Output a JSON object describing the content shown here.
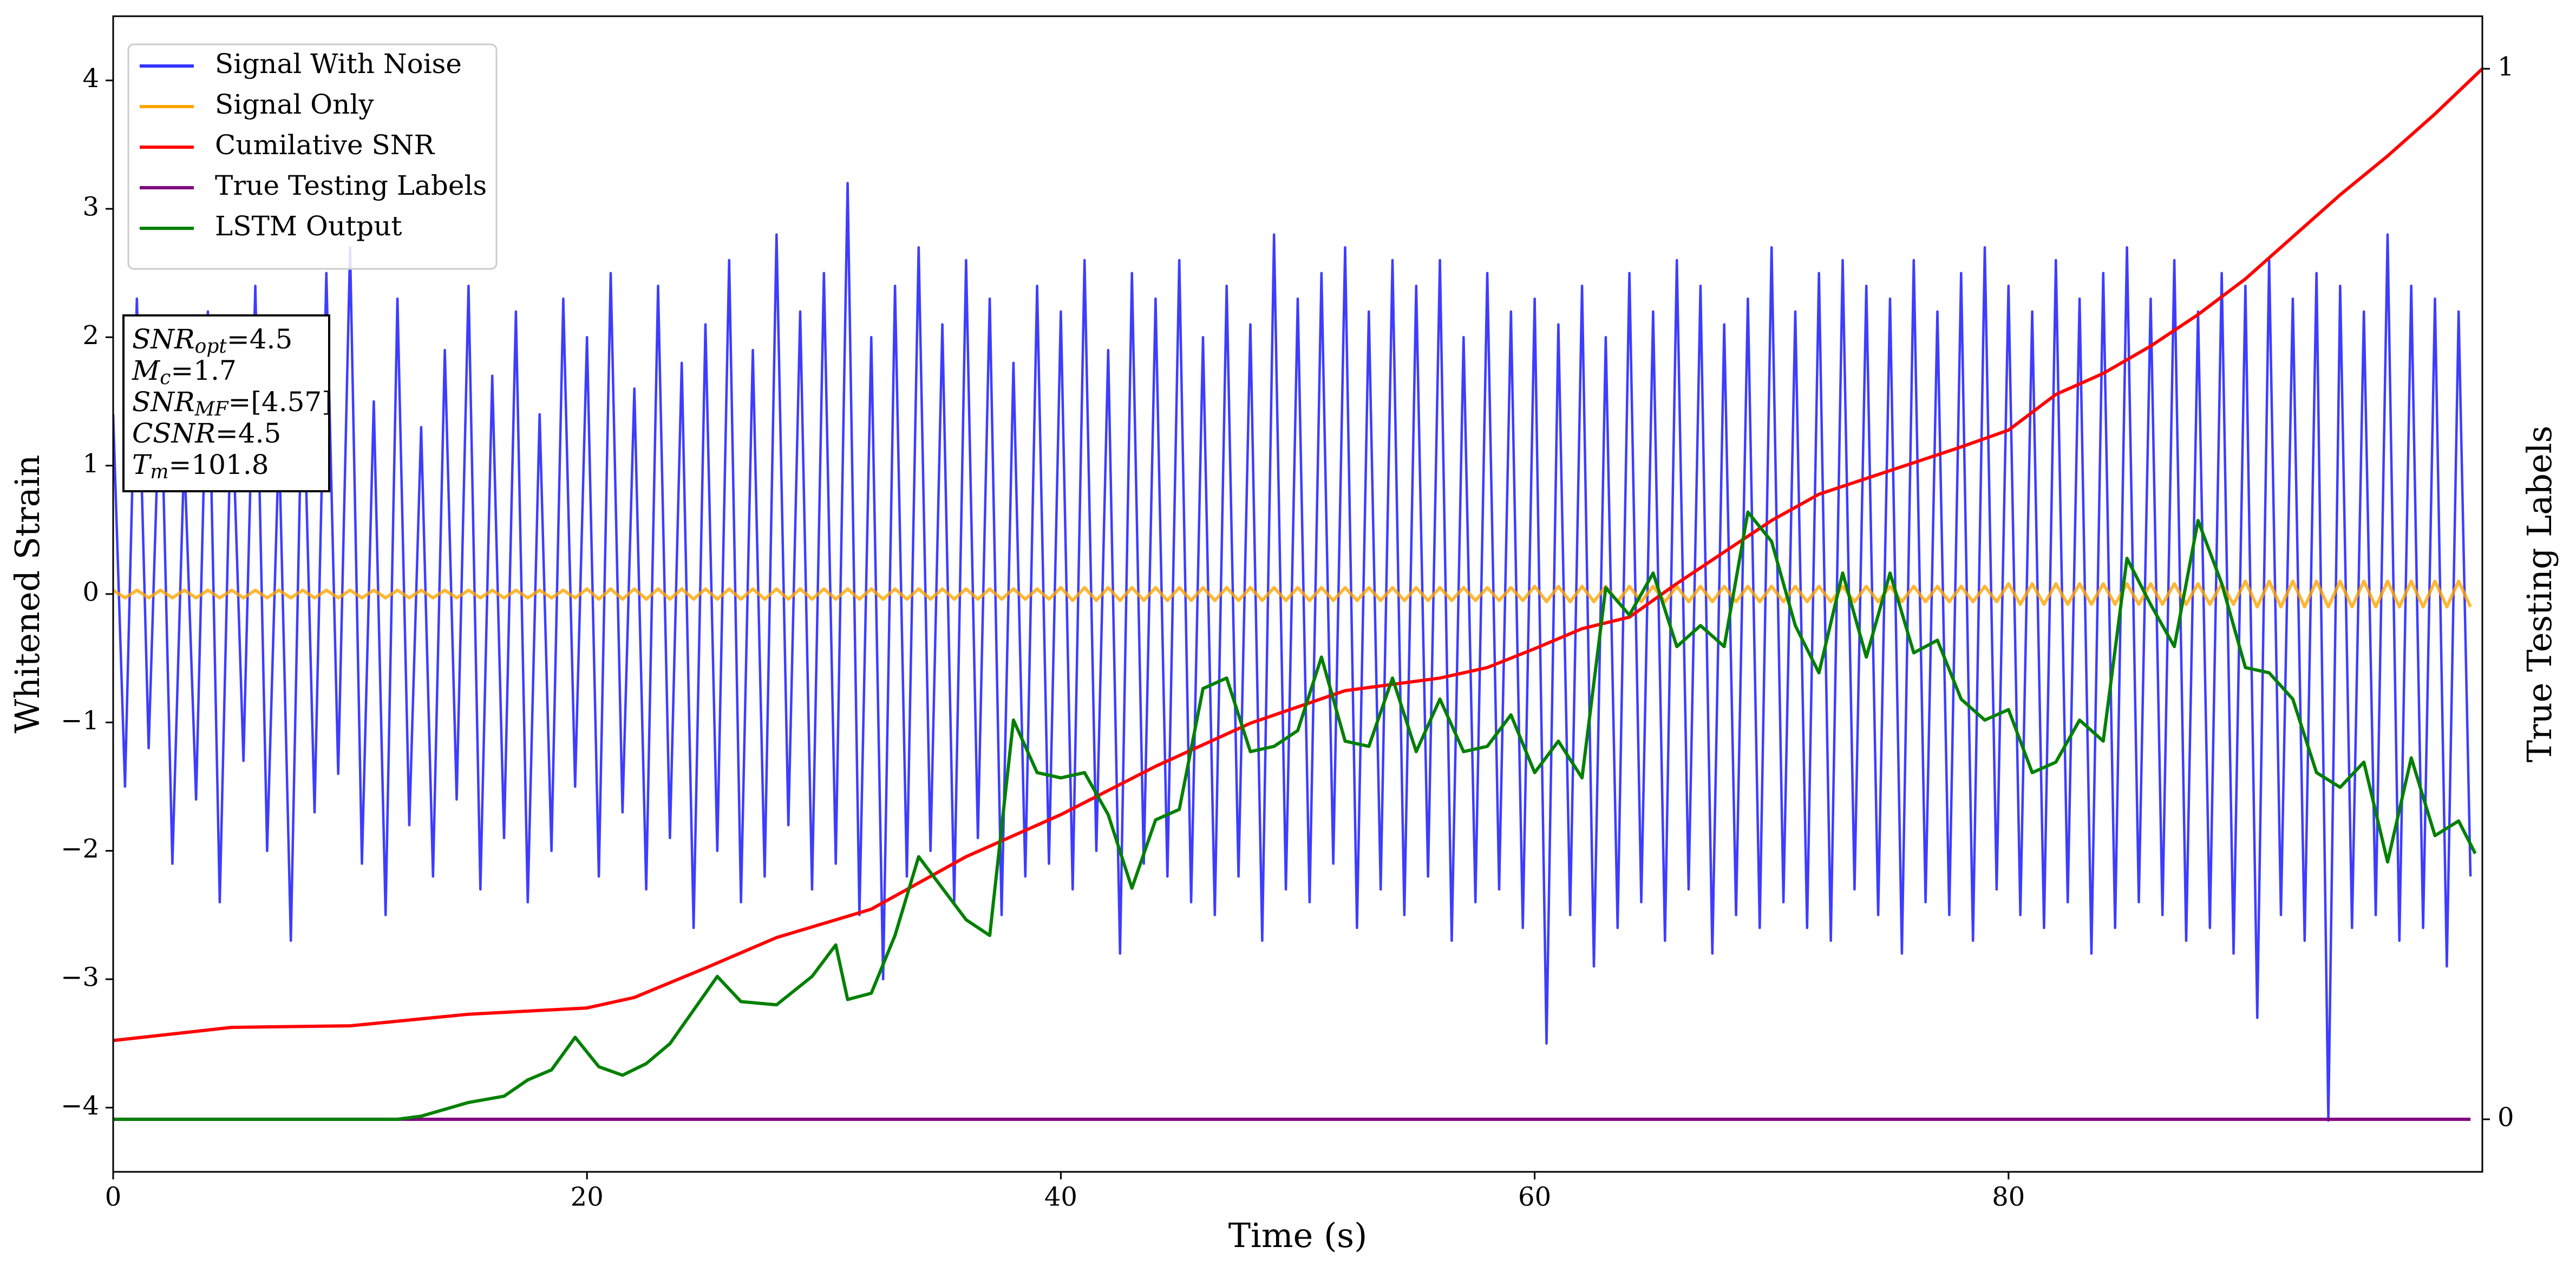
{
  "chart_data": {
    "type": "line",
    "xlabel": "Time (s)",
    "ylabel": "Whitened Strain",
    "y2label": "True Testing Labels",
    "xlim": [
      0,
      100
    ],
    "ylim": [
      -4.5,
      4.5
    ],
    "y2lim": [
      -0.05,
      1.05
    ],
    "xticks": [
      0,
      20,
      40,
      60,
      80
    ],
    "yticks": [
      {
        "value": -4,
        "label": "−4"
      },
      {
        "value": -3,
        "label": "−3"
      },
      {
        "value": -2,
        "label": "−2"
      },
      {
        "value": -1,
        "label": "−1"
      },
      0,
      1,
      2,
      3,
      4
    ],
    "y2ticks": [
      0,
      1
    ],
    "grid": false,
    "legend": "upper left",
    "annotations": [
      {
        "main": "SNR",
        "sub": "opt",
        "tail": "=4.5"
      },
      {
        "main": "M",
        "sub": "c",
        "tail": "=1.7"
      },
      {
        "main": "SNR",
        "sub": "MF",
        "tail": "=[4.57]"
      },
      {
        "main": "CSNR",
        "tail": "=4.5"
      },
      {
        "main": "T",
        "sub": "m",
        "tail": "=101.8"
      }
    ],
    "x": [
      0,
      0.5,
      1,
      1.5,
      2,
      2.5,
      3,
      3.5,
      4,
      4.5,
      5,
      5.5,
      6,
      6.5,
      7,
      7.5,
      8,
      8.5,
      9,
      9.5,
      10,
      10.5,
      11,
      11.5,
      12,
      12.5,
      13,
      13.5,
      14,
      14.5,
      15,
      15.5,
      16,
      16.5,
      17,
      17.5,
      18,
      18.5,
      19,
      19.5,
      20,
      20.5,
      21,
      21.5,
      22,
      22.5,
      23,
      23.5,
      24,
      24.5,
      25,
      25.5,
      26,
      26.5,
      27,
      27.5,
      28,
      28.5,
      29,
      29.5,
      30,
      30.5,
      31,
      31.5,
      32,
      32.5,
      33,
      33.5,
      34,
      34.5,
      35,
      35.5,
      36,
      36.5,
      37,
      37.5,
      38,
      38.5,
      39,
      39.5,
      40,
      40.5,
      41,
      41.5,
      42,
      42.5,
      43,
      43.5,
      44,
      44.5,
      45,
      45.5,
      46,
      46.5,
      47,
      47.5,
      48,
      48.5,
      49,
      49.5,
      50,
      50.5,
      51,
      51.5,
      52,
      52.5,
      53,
      53.5,
      54,
      54.5,
      55,
      55.5,
      56,
      56.5,
      57,
      57.5,
      58,
      58.5,
      59,
      59.5,
      60,
      60.5,
      61,
      61.5,
      62,
      62.5,
      63,
      63.5,
      64,
      64.5,
      65,
      65.5,
      66,
      66.5,
      67,
      67.5,
      68,
      68.5,
      69,
      69.5,
      70,
      70.5,
      71,
      71.5,
      72,
      72.5,
      73,
      73.5,
      74,
      74.5,
      75,
      75.5,
      76,
      76.5,
      77,
      77.5,
      78,
      78.5,
      79,
      79.5,
      80,
      80.5,
      81,
      81.5,
      82,
      82.5,
      83,
      83.5,
      84,
      84.5,
      85,
      85.5,
      86,
      86.5,
      87,
      87.5,
      88,
      88.5,
      89,
      89.5,
      90,
      90.5,
      91,
      91.5,
      92,
      92.5,
      93,
      93.5,
      94,
      94.5,
      95,
      95.5,
      96,
      96.5,
      97,
      97.5,
      98,
      98.5,
      99,
      99.5
    ],
    "series": [
      {
        "name": "Signal With Noise",
        "color": "#3333ff",
        "values": [
          1.4,
          -1.5,
          2.3,
          -1.2,
          1.8,
          -2.1,
          1.1,
          -1.6,
          2.2,
          -2.4,
          1.6,
          -1.3,
          2.4,
          -2.0,
          1.2,
          -2.7,
          1.9,
          -1.7,
          2.5,
          -1.4,
          2.7,
          -2.1,
          1.5,
          -2.5,
          2.3,
          -1.8,
          1.3,
          -2.2,
          1.9,
          -1.6,
          2.4,
          -2.3,
          1.7,
          -1.9,
          2.2,
          -2.4,
          1.4,
          -2.0,
          2.3,
          -1.5,
          2.0,
          -2.2,
          2.5,
          -1.7,
          1.6,
          -2.3,
          2.4,
          -1.9,
          1.8,
          -2.6,
          2.1,
          -2.0,
          2.6,
          -2.4,
          1.9,
          -2.2,
          2.8,
          -1.8,
          2.2,
          -2.3,
          2.5,
          -2.1,
          3.2,
          -2.5,
          2.0,
          -3.0,
          2.4,
          -2.2,
          2.7,
          -2.0,
          2.1,
          -2.4,
          2.6,
          -1.9,
          2.3,
          -2.5,
          1.8,
          -2.2,
          2.4,
          -2.1,
          2.2,
          -2.3,
          2.6,
          -2.0,
          1.9,
          -2.8,
          2.5,
          -2.1,
          2.3,
          -2.2,
          2.6,
          -2.4,
          2.0,
          -2.5,
          2.4,
          -2.2,
          2.1,
          -2.7,
          2.8,
          -2.3,
          2.3,
          -2.4,
          2.5,
          -2.1,
          2.7,
          -2.6,
          2.2,
          -2.3,
          2.6,
          -2.5,
          2.4,
          -2.2,
          2.6,
          -2.7,
          2.0,
          -2.4,
          2.5,
          -2.3,
          2.2,
          -2.6,
          2.3,
          -3.5,
          2.1,
          -2.5,
          2.4,
          -2.9,
          2.0,
          -2.6,
          2.5,
          -2.4,
          2.2,
          -2.7,
          2.6,
          -2.3,
          2.4,
          -2.8,
          2.1,
          -2.5,
          2.3,
          -2.6,
          2.7,
          -2.4,
          2.2,
          -2.6,
          2.5,
          -2.7,
          2.6,
          -2.3,
          2.4,
          -2.5,
          2.3,
          -2.8,
          2.6,
          -2.4,
          2.2,
          -2.5,
          2.5,
          -2.7,
          2.7,
          -2.3,
          2.4,
          -2.5,
          2.2,
          -2.6,
          2.6,
          -2.4,
          2.3,
          -2.8,
          2.5,
          -2.6,
          2.7,
          -2.4,
          2.3,
          -2.5,
          2.6,
          -2.7,
          2.2,
          -2.6,
          2.5,
          -2.8,
          2.4,
          -3.3,
          2.6,
          -2.5,
          2.3,
          -2.7,
          2.5,
          -4.1,
          2.4,
          -2.6,
          2.2,
          -2.5,
          2.8,
          -2.7,
          2.4,
          -2.6,
          2.3,
          -2.9,
          2.2,
          -2.2
        ]
      },
      {
        "name": "Signal Only",
        "color": "#ffa500",
        "values": [
          0.03,
          -0.03,
          0.03,
          -0.03,
          0.03,
          -0.03,
          0.03,
          -0.03,
          0.03,
          -0.03,
          0.03,
          -0.03,
          0.03,
          -0.03,
          0.03,
          -0.03,
          0.03,
          -0.03,
          0.03,
          -0.03,
          0.03,
          -0.03,
          0.03,
          -0.03,
          0.03,
          -0.03,
          0.03,
          -0.03,
          0.03,
          -0.03,
          0.03,
          -0.03,
          0.03,
          -0.03,
          0.03,
          -0.03,
          0.03,
          -0.03,
          0.03,
          -0.03,
          0.04,
          -0.04,
          0.04,
          -0.04,
          0.04,
          -0.04,
          0.04,
          -0.04,
          0.04,
          -0.04,
          0.04,
          -0.04,
          0.04,
          -0.04,
          0.04,
          -0.04,
          0.04,
          -0.04,
          0.04,
          -0.04,
          0.04,
          -0.04,
          0.04,
          -0.04,
          0.04,
          -0.04,
          0.04,
          -0.04,
          0.04,
          -0.04,
          0.04,
          -0.04,
          0.04,
          -0.04,
          0.04,
          -0.04,
          0.04,
          -0.04,
          0.04,
          -0.04,
          0.05,
          -0.05,
          0.05,
          -0.05,
          0.05,
          -0.05,
          0.05,
          -0.05,
          0.05,
          -0.05,
          0.05,
          -0.05,
          0.05,
          -0.05,
          0.05,
          -0.05,
          0.05,
          -0.05,
          0.05,
          -0.05,
          0.05,
          -0.05,
          0.05,
          -0.05,
          0.05,
          -0.05,
          0.05,
          -0.05,
          0.05,
          -0.05,
          0.05,
          -0.05,
          0.05,
          -0.05,
          0.05,
          -0.05,
          0.05,
          -0.05,
          0.05,
          -0.05,
          0.06,
          -0.06,
          0.06,
          -0.06,
          0.06,
          -0.06,
          0.06,
          -0.06,
          0.06,
          -0.06,
          0.06,
          -0.06,
          0.06,
          -0.06,
          0.06,
          -0.06,
          0.06,
          -0.06,
          0.06,
          -0.06,
          0.06,
          -0.06,
          0.06,
          -0.06,
          0.06,
          -0.06,
          0.06,
          -0.06,
          0.06,
          -0.06,
          0.06,
          -0.06,
          0.06,
          -0.06,
          0.06,
          -0.06,
          0.06,
          -0.06,
          0.06,
          -0.06,
          0.08,
          -0.08,
          0.08,
          -0.08,
          0.08,
          -0.08,
          0.08,
          -0.08,
          0.08,
          -0.08,
          0.08,
          -0.08,
          0.08,
          -0.08,
          0.08,
          -0.08,
          0.08,
          -0.08,
          0.08,
          -0.08,
          0.1,
          -0.1,
          0.1,
          -0.1,
          0.1,
          -0.1,
          0.1,
          -0.1,
          0.1,
          -0.1,
          0.1,
          -0.1,
          0.1,
          -0.1,
          0.1,
          -0.1,
          0.1,
          -0.1,
          0.1,
          -0.1
        ]
      },
      {
        "name": "Cumilative SNR",
        "color": "#ff0000",
        "axis": "y2",
        "x": [
          0,
          5,
          10,
          15,
          20,
          22,
          25,
          28,
          32,
          36,
          40,
          44,
          48,
          52,
          56,
          58,
          60,
          62,
          64,
          66,
          68,
          70,
          72,
          74,
          76,
          78,
          80,
          82,
          84,
          86,
          88,
          90,
          92,
          94,
          96,
          98,
          100
        ],
        "values": [
          0.075,
          0.0875,
          0.089,
          0.1,
          0.106,
          0.116,
          0.144,
          0.173,
          0.2,
          0.25,
          0.29,
          0.336,
          0.377,
          0.408,
          0.42,
          0.43,
          0.448,
          0.467,
          0.478,
          0.51,
          0.54,
          0.57,
          0.595,
          0.61,
          0.625,
          0.64,
          0.656,
          0.69,
          0.71,
          0.736,
          0.766,
          0.8,
          0.84,
          0.88,
          0.917,
          0.957,
          1.0
        ]
      },
      {
        "name": "True Testing Labels",
        "color": "#800080",
        "axis": "y2",
        "x": [
          0,
          99.5
        ],
        "values": [
          0,
          0
        ]
      },
      {
        "name": "LSTM Output",
        "color": "#008000",
        "axis": "y2",
        "x": [
          0,
          12,
          13,
          15,
          16.5,
          17.5,
          18.5,
          19.5,
          20.5,
          21.5,
          22.5,
          23.5,
          25.5,
          26.5,
          28,
          29.5,
          30.5,
          31,
          32,
          33,
          34,
          35,
          36,
          37,
          38,
          39,
          40,
          41,
          42,
          43,
          44,
          45,
          46,
          47,
          48,
          49,
          50,
          51,
          52,
          53,
          54,
          55,
          56,
          57,
          58,
          59,
          60,
          61,
          62,
          63,
          64,
          65,
          66,
          67,
          68,
          69,
          70,
          71,
          72,
          73,
          74,
          75,
          76,
          77,
          78,
          79,
          80,
          81,
          82,
          83,
          84,
          85,
          86,
          87,
          88,
          89,
          90,
          91,
          92,
          93,
          94,
          95,
          96,
          97,
          98,
          99,
          99.7
        ],
        "values": [
          0,
          0,
          0.003,
          0.016,
          0.022,
          0.0375,
          0.047,
          0.078,
          0.05,
          0.042,
          0.053,
          0.072,
          0.136,
          0.112,
          0.109,
          0.136,
          0.166,
          0.114,
          0.12,
          0.175,
          0.25,
          0.22,
          0.19,
          0.175,
          0.38,
          0.33,
          0.325,
          0.33,
          0.29,
          0.22,
          0.285,
          0.295,
          0.41,
          0.42,
          0.35,
          0.355,
          0.37,
          0.44,
          0.36,
          0.355,
          0.42,
          0.35,
          0.4,
          0.35,
          0.355,
          0.385,
          0.33,
          0.36,
          0.325,
          0.506,
          0.48,
          0.52,
          0.45,
          0.47,
          0.45,
          0.578,
          0.55,
          0.47,
          0.425,
          0.52,
          0.44,
          0.52,
          0.444,
          0.456,
          0.4,
          0.38,
          0.39,
          0.33,
          0.34,
          0.38,
          0.36,
          0.534,
          0.49,
          0.45,
          0.57,
          0.51,
          0.43,
          0.425,
          0.4,
          0.33,
          0.316,
          0.34,
          0.245,
          0.344,
          0.27,
          0.284,
          0.253
        ]
      }
    ]
  }
}
